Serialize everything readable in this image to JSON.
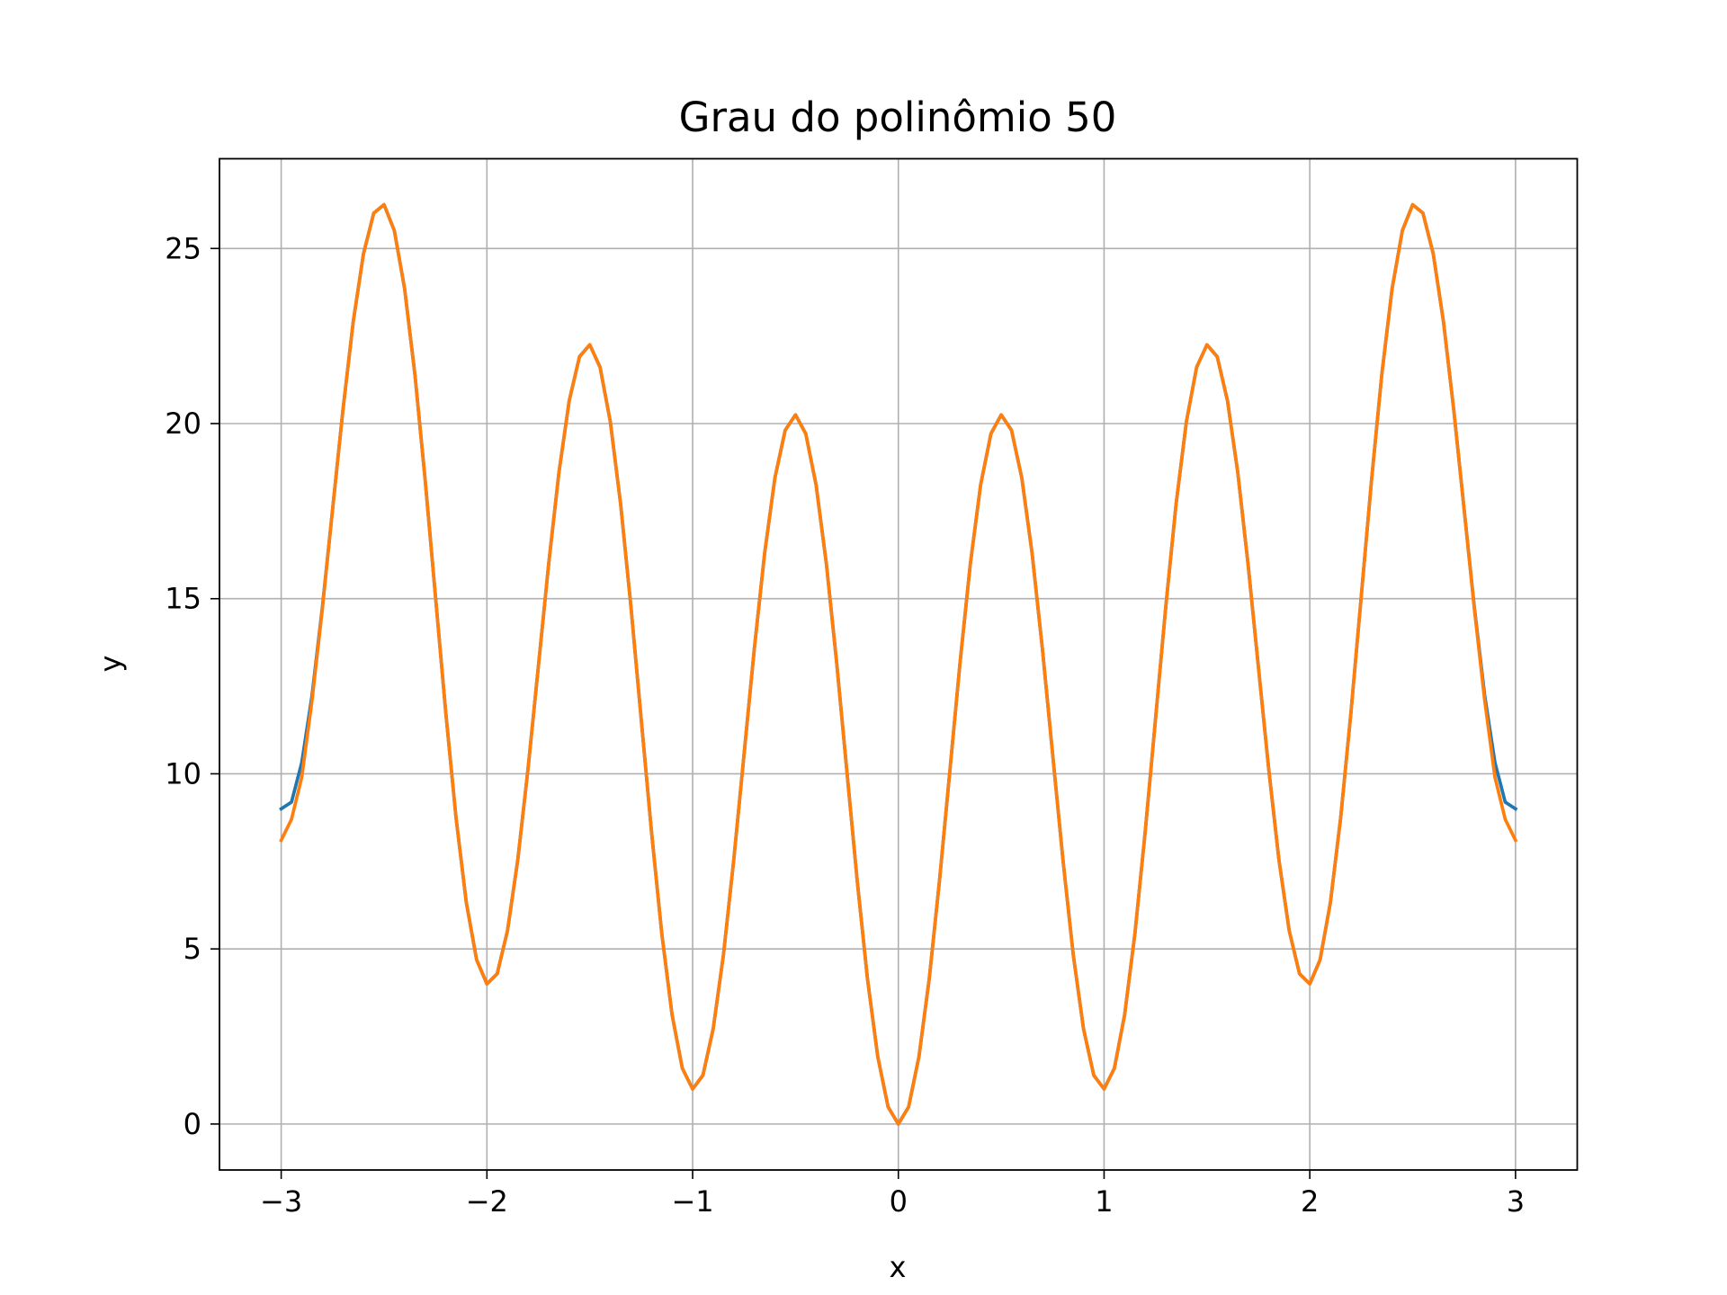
{
  "chart_data": {
    "type": "line",
    "title": "Grau do polinômio 50",
    "xlabel": "x",
    "ylabel": "y",
    "x": [
      -3,
      -2.95,
      -2.9,
      -2.85,
      -2.8,
      -2.75,
      -2.7,
      -2.65,
      -2.6,
      -2.55,
      -2.5,
      -2.45,
      -2.4,
      -2.35,
      -2.3,
      -2.25,
      -2.2,
      -2.15,
      -2.1,
      -2.05,
      -2,
      -1.95,
      -1.9,
      -1.85,
      -1.8,
      -1.75,
      -1.7,
      -1.65,
      -1.6,
      -1.55,
      -1.5,
      -1.45,
      -1.4,
      -1.35,
      -1.3,
      -1.25,
      -1.2,
      -1.15,
      -1.1,
      -1.05,
      -1,
      -0.95,
      -0.9,
      -0.85,
      -0.8,
      -0.75,
      -0.7,
      -0.65,
      -0.6,
      -0.55,
      -0.5,
      -0.45,
      -0.4,
      -0.35,
      -0.3,
      -0.25,
      -0.2,
      -0.15,
      -0.1,
      -0.05,
      0,
      0.05,
      0.1,
      0.15,
      0.2,
      0.25,
      0.3,
      0.35,
      0.4,
      0.45,
      0.5,
      0.55,
      0.6,
      0.65,
      0.7,
      0.75,
      0.8,
      0.85,
      0.9,
      0.95,
      1,
      1.05,
      1.1,
      1.15,
      1.2,
      1.25,
      1.3,
      1.35,
      1.4,
      1.45,
      1.5,
      1.55,
      1.6,
      1.65,
      1.7,
      1.75,
      1.8,
      1.85,
      1.9,
      1.95,
      2,
      2.05,
      2.1,
      2.15,
      2.2,
      2.25,
      2.3,
      2.35,
      2.4,
      2.45,
      2.5,
      2.55,
      2.6,
      2.65,
      2.7,
      2.75,
      2.8,
      2.85,
      2.9,
      2.95,
      3
    ],
    "series": [
      {
        "color": "#1f77b4",
        "values": [
          9,
          9.19,
          10.32,
          12.24,
          14.75,
          17.56,
          20.38,
          22.9,
          24.85,
          26.01,
          26.25,
          25.51,
          23.85,
          21.4,
          18.38,
          15.06,
          11.75,
          8.74,
          6.32,
          4.69,
          4,
          4.29,
          5.52,
          7.54,
          10.15,
          13.06,
          15.98,
          18.6,
          20.65,
          21.91,
          22.25,
          21.61,
          20.05,
          17.7,
          14.78,
          11.56,
          8.35,
          5.44,
          3.12,
          1.59,
          1,
          1.39,
          2.72,
          4.84,
          7.55,
          10.56,
          13.58,
          16.3,
          18.45,
          19.81,
          20.25,
          19.71,
          18.25,
          16,
          13.18,
          10.06,
          6.95,
          4.14,
          1.92,
          0.49,
          0,
          0.49,
          1.92,
          4.14,
          6.95,
          10.06,
          13.18,
          16,
          18.25,
          19.71,
          20.25,
          19.81,
          18.45,
          16.3,
          13.58,
          10.56,
          7.55,
          4.84,
          2.72,
          1.39,
          1,
          1.59,
          3.12,
          5.44,
          8.35,
          11.56,
          14.78,
          17.7,
          20.05,
          21.61,
          22.25,
          21.91,
          20.65,
          18.6,
          15.98,
          13.06,
          10.15,
          7.54,
          5.52,
          4.29,
          4,
          4.69,
          6.32,
          8.74,
          11.75,
          15.06,
          18.38,
          21.4,
          23.85,
          25.51,
          26.25,
          26.01,
          24.85,
          22.9,
          20.38,
          17.56,
          14.75,
          12.24,
          10.32,
          9.19,
          9
        ]
      },
      {
        "color": "#ff7f0e",
        "values": [
          8.1,
          8.7,
          9.9,
          12.1,
          14.7,
          17.56,
          20.38,
          22.9,
          24.85,
          26.01,
          26.25,
          25.51,
          23.85,
          21.4,
          18.38,
          15.06,
          11.75,
          8.74,
          6.32,
          4.69,
          4,
          4.29,
          5.52,
          7.54,
          10.15,
          13.06,
          15.98,
          18.6,
          20.65,
          21.91,
          22.25,
          21.61,
          20.05,
          17.7,
          14.78,
          11.56,
          8.35,
          5.44,
          3.12,
          1.59,
          1,
          1.39,
          2.72,
          4.84,
          7.55,
          10.56,
          13.58,
          16.3,
          18.45,
          19.81,
          20.25,
          19.71,
          18.25,
          16,
          13.18,
          10.06,
          6.95,
          4.14,
          1.92,
          0.49,
          0,
          0.49,
          1.92,
          4.14,
          6.95,
          10.06,
          13.18,
          16,
          18.25,
          19.71,
          20.25,
          19.81,
          18.45,
          16.3,
          13.58,
          10.56,
          7.55,
          4.84,
          2.72,
          1.39,
          1,
          1.59,
          3.12,
          5.44,
          8.35,
          11.56,
          14.78,
          17.7,
          20.05,
          21.61,
          22.25,
          21.91,
          20.65,
          18.6,
          15.98,
          13.06,
          10.15,
          7.54,
          5.52,
          4.29,
          4,
          4.69,
          6.32,
          8.74,
          11.75,
          15.06,
          18.38,
          21.4,
          23.85,
          25.51,
          26.25,
          26.01,
          24.85,
          22.9,
          20.38,
          17.56,
          14.7,
          12.1,
          9.9,
          8.7,
          8.1
        ]
      }
    ],
    "xlim": [
      -3.3,
      3.3
    ],
    "ylim": [
      -1.3125,
      27.5625
    ],
    "xticks": [
      {
        "value": -3,
        "label": "−3"
      },
      {
        "value": -2,
        "label": "−2"
      },
      {
        "value": -1,
        "label": "−1"
      },
      0,
      1,
      2,
      3
    ],
    "yticks": [
      0,
      5,
      10,
      15,
      20,
      25
    ],
    "grid": true
  }
}
